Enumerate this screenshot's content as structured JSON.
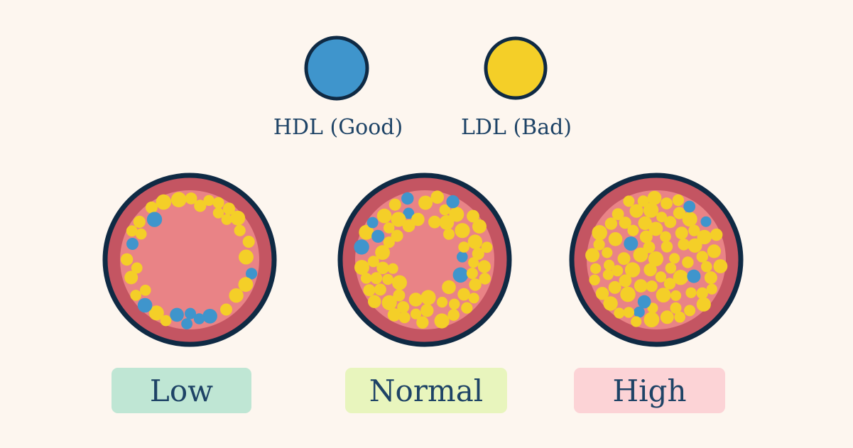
{
  "legend": [
    {
      "label": "HDL (Good)",
      "color": "#3f95cc",
      "icon": "hdl-particle-icon"
    },
    {
      "label": "LDL (Bad)",
      "color": "#f4cf28",
      "icon": "ldl-particle-icon"
    }
  ],
  "levels": [
    {
      "label": "Low",
      "badge_color": "#bfe6d4",
      "hdl_count": 9,
      "ldl_count": 28
    },
    {
      "label": "Normal",
      "badge_color": "#e8f5bd",
      "hdl_count": 8,
      "ldl_count": 82
    },
    {
      "label": "High",
      "badge_color": "#fcd3d6",
      "hdl_count": 6,
      "ldl_count": 130
    }
  ],
  "colors": {
    "background": "#fdf6ef",
    "vessel_wall": "#c45562",
    "vessel_lumen": "#e98386",
    "outline": "#0f2a44",
    "text": "#1e4366"
  }
}
